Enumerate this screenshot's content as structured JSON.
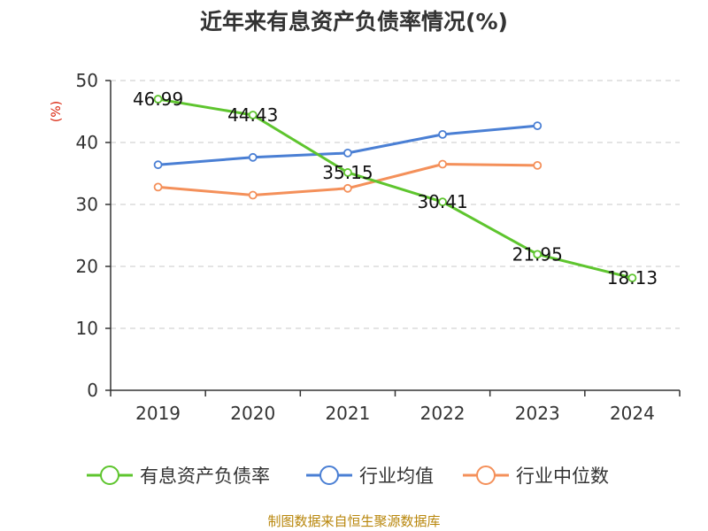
{
  "chart_data": {
    "type": "line",
    "title": "近年来有息资产负债率情况(%)",
    "ylabel": "(%)",
    "categories": [
      "2019",
      "2020",
      "2021",
      "2022",
      "2023",
      "2024"
    ],
    "ylim": [
      0,
      50
    ],
    "yticks": [
      0,
      10,
      20,
      30,
      40,
      50
    ],
    "grid": true,
    "legend_position": "bottom",
    "series": [
      {
        "name": "有息资产负债率",
        "color": "#5ec52e",
        "values": [
          46.99,
          44.43,
          35.15,
          30.41,
          21.95,
          18.13
        ],
        "labels": [
          "46.99",
          "44.43",
          "35.15",
          "30.41",
          "21.95",
          "18.13"
        ]
      },
      {
        "name": "行业均值",
        "color": "#4a7fd4",
        "values": [
          36.4,
          37.6,
          38.3,
          41.3,
          42.7,
          null
        ]
      },
      {
        "name": "行业中位数",
        "color": "#f4905a",
        "values": [
          32.8,
          31.5,
          32.6,
          36.5,
          36.3,
          null
        ]
      }
    ]
  },
  "source": "制图数据来自恒生聚源数据库"
}
